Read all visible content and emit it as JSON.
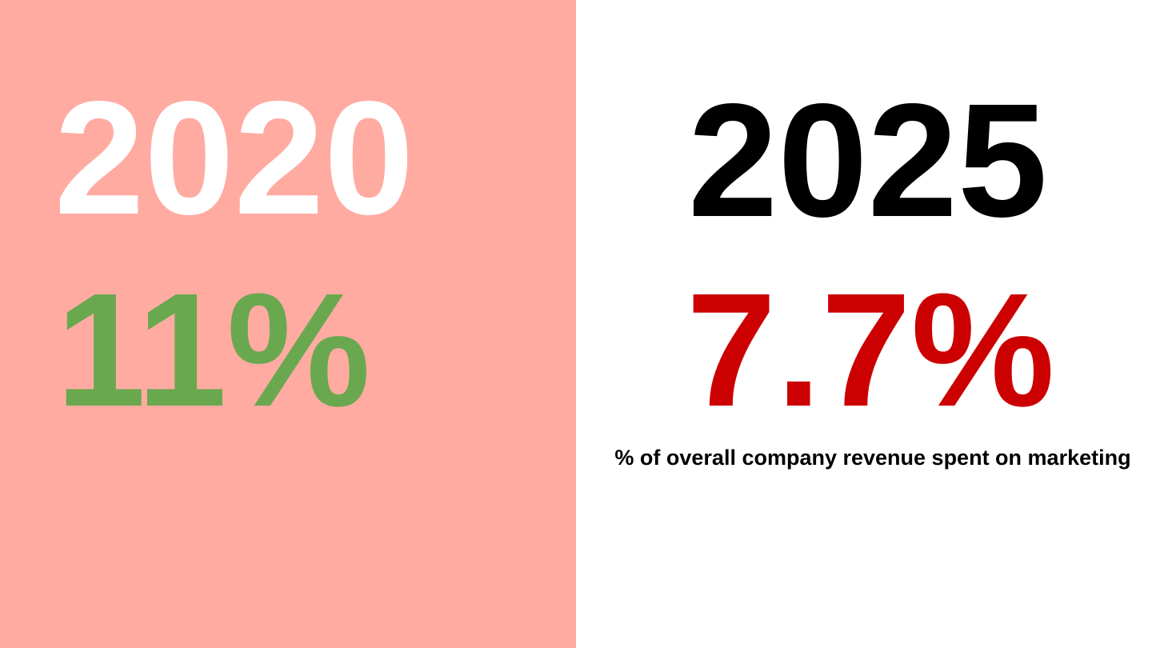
{
  "left": {
    "year": "2020",
    "value": "11%",
    "background_color": "#ffaba2",
    "year_color": "#ffffff",
    "value_color": "#6aa84f"
  },
  "right": {
    "year": "2025",
    "value": "7.7%",
    "caption": "% of overall company revenue spent on marketing",
    "year_color": "#000000",
    "value_color": "#cc0000"
  }
}
